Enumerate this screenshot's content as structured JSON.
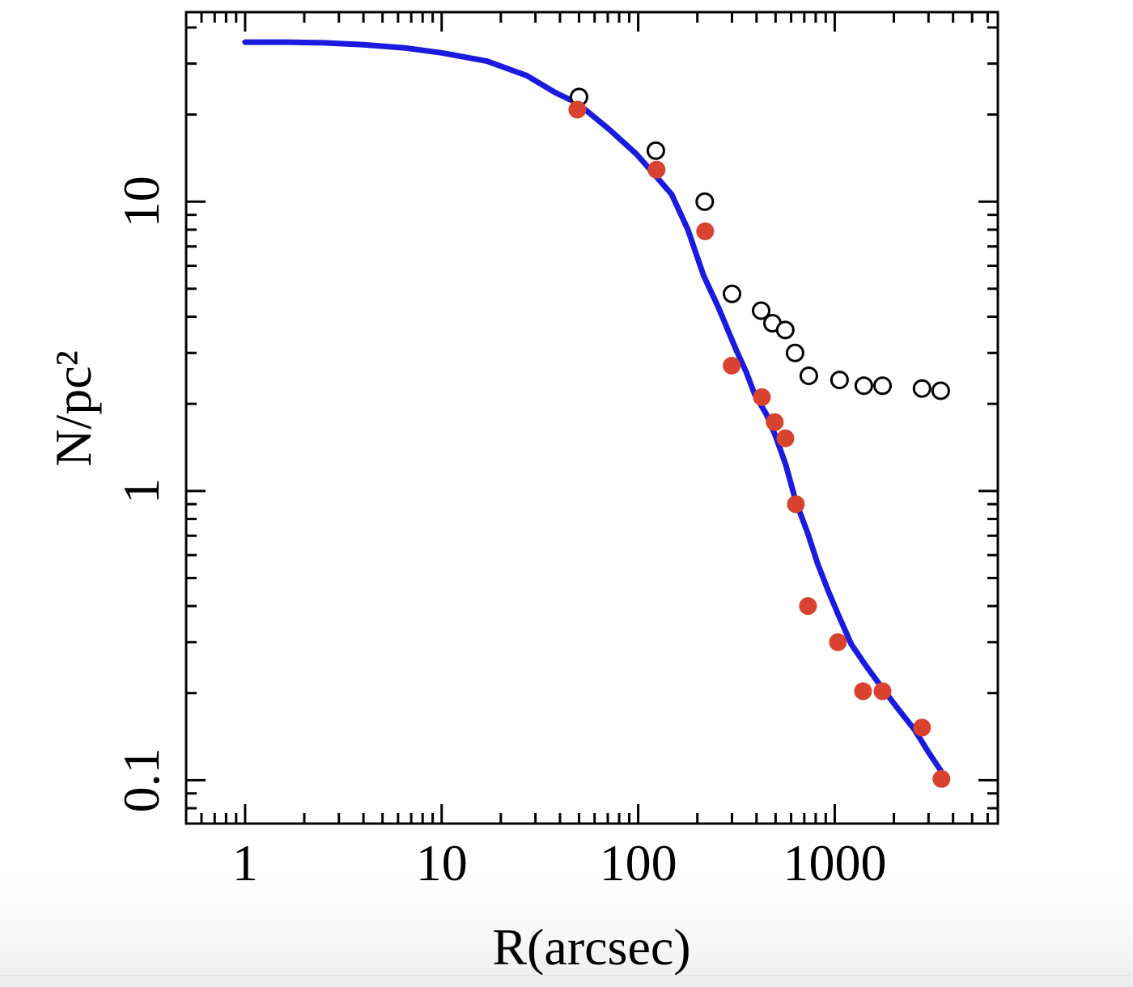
{
  "chart_data": {
    "type": "scatter",
    "title": "",
    "xlabel": "R(arcsec)",
    "ylabel": "N/pc²",
    "x_scale": "log",
    "y_scale": "log",
    "x_range": [
      0.501,
      6760
    ],
    "y_range": [
      0.0708,
      45.2
    ],
    "grid": false,
    "legend": "none",
    "frame_color": "#000000",
    "x_major_ticks": [
      {
        "value": 1,
        "label": "1"
      },
      {
        "value": 10,
        "label": "10"
      },
      {
        "value": 100,
        "label": "100"
      },
      {
        "value": 1000,
        "label": "1000"
      }
    ],
    "y_major_ticks": [
      {
        "value": 10,
        "label": "10"
      },
      {
        "value": 1,
        "label": "1"
      },
      {
        "value": 0.1,
        "label": "0.1"
      }
    ],
    "series": [
      {
        "name": "model-fit-curve",
        "type": "line",
        "color": "#1a1ae0",
        "stroke_width": 7,
        "points": [
          [
            1.0,
            35.6
          ],
          [
            1.6,
            35.6
          ],
          [
            2.5,
            35.4
          ],
          [
            4.0,
            34.9
          ],
          [
            6.5,
            34.0
          ],
          [
            10,
            32.7
          ],
          [
            17,
            30.6
          ],
          [
            27,
            27.3
          ],
          [
            38,
            23.8
          ],
          [
            49,
            21.9
          ],
          [
            71,
            17.8
          ],
          [
            98,
            14.6
          ],
          [
            125,
            12.1
          ],
          [
            148,
            10.6
          ],
          [
            179,
            8.0
          ],
          [
            215,
            5.56
          ],
          [
            256,
            4.31
          ],
          [
            316,
            3.06
          ],
          [
            355,
            2.57
          ],
          [
            391,
            2.16
          ],
          [
            449,
            1.84
          ],
          [
            501,
            1.54
          ],
          [
            564,
            1.23
          ],
          [
            634,
            0.92
          ],
          [
            731,
            0.71
          ],
          [
            819,
            0.56
          ],
          [
            928,
            0.45
          ],
          [
            1048,
            0.37
          ],
          [
            1215,
            0.295
          ],
          [
            1433,
            0.25
          ],
          [
            1738,
            0.209
          ],
          [
            2107,
            0.176
          ],
          [
            2555,
            0.149
          ],
          [
            2998,
            0.125
          ],
          [
            3460,
            0.108
          ]
        ]
      },
      {
        "name": "red-filled-points",
        "type": "scatter",
        "marker": "filled-circle",
        "color": "#d9422f",
        "radius": 11,
        "points": [
          [
            49,
            20.8
          ],
          [
            124,
            12.9
          ],
          [
            219,
            7.9
          ],
          [
            299,
            2.71
          ],
          [
            426,
            2.11
          ],
          [
            495,
            1.73
          ],
          [
            561,
            1.52
          ],
          [
            634,
            0.9
          ],
          [
            731,
            0.4
          ],
          [
            1038,
            0.3
          ],
          [
            1393,
            0.203
          ],
          [
            1750,
            0.203
          ],
          [
            2780,
            0.152
          ],
          [
            3490,
            0.101
          ]
        ]
      },
      {
        "name": "open-circle-points",
        "type": "scatter",
        "marker": "open-circle",
        "color": "#000000",
        "fill": "#ffffff",
        "radius": 10,
        "stroke_width": 3,
        "points": [
          [
            50,
            23.0
          ],
          [
            123,
            15.0
          ],
          [
            218,
            10.0
          ],
          [
            300,
            4.8
          ],
          [
            422,
            4.2
          ],
          [
            482,
            3.8
          ],
          [
            560,
            3.6
          ],
          [
            628,
            3.0
          ],
          [
            738,
            2.5
          ],
          [
            1058,
            2.42
          ],
          [
            1406,
            2.31
          ],
          [
            1750,
            2.31
          ],
          [
            2780,
            2.26
          ],
          [
            3460,
            2.22
          ]
        ]
      }
    ]
  }
}
